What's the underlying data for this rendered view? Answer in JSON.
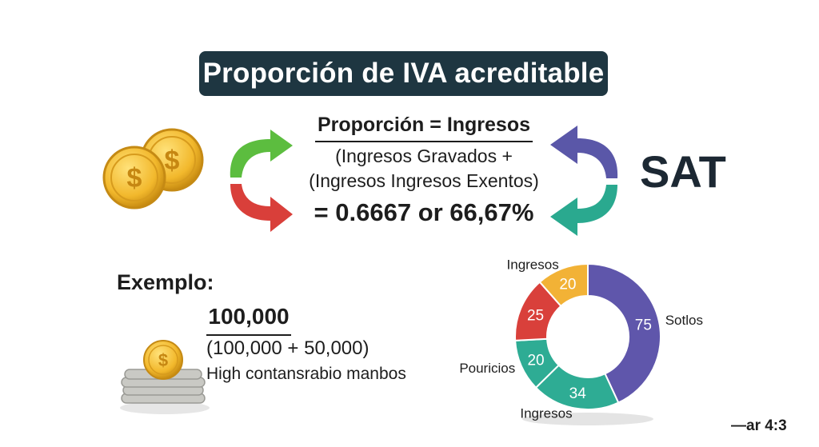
{
  "title": "Proporción de IVA acreditable",
  "formula": {
    "numerator": "Proporción = Ingresos",
    "denominator_line1": "(Ingresos Gravados +",
    "denominator_line2": "(Ingresos Ingresos Exentos)",
    "result": "= 0.6667 or 66,67%"
  },
  "sat_label": "SAT",
  "example": {
    "heading": "Exemplo:",
    "numerator": "100,000",
    "denominator": "(100,000 + 50,000)",
    "note": "High contansrabio manbos"
  },
  "coin_symbol": "$",
  "aspect_label": "—ar 4:3",
  "arrow_colors": {
    "green": "#5cbd3f",
    "red": "#d93f3a",
    "blue": "#5a57a8",
    "teal": "#2aa98f"
  },
  "chart_data": {
    "type": "pie",
    "style": "donut",
    "slices": [
      {
        "label": "Sotlos",
        "value": 75,
        "color": "#5f56ab"
      },
      {
        "label": "Ingresos",
        "value": 34,
        "color": "#2eac94"
      },
      {
        "label": "Pouricios",
        "value": 20,
        "color": "#2eac94"
      },
      {
        "label": "",
        "value": 25,
        "color": "#d9403b"
      },
      {
        "label": "Ingresos",
        "value": 20,
        "color": "#f2b236"
      }
    ]
  }
}
